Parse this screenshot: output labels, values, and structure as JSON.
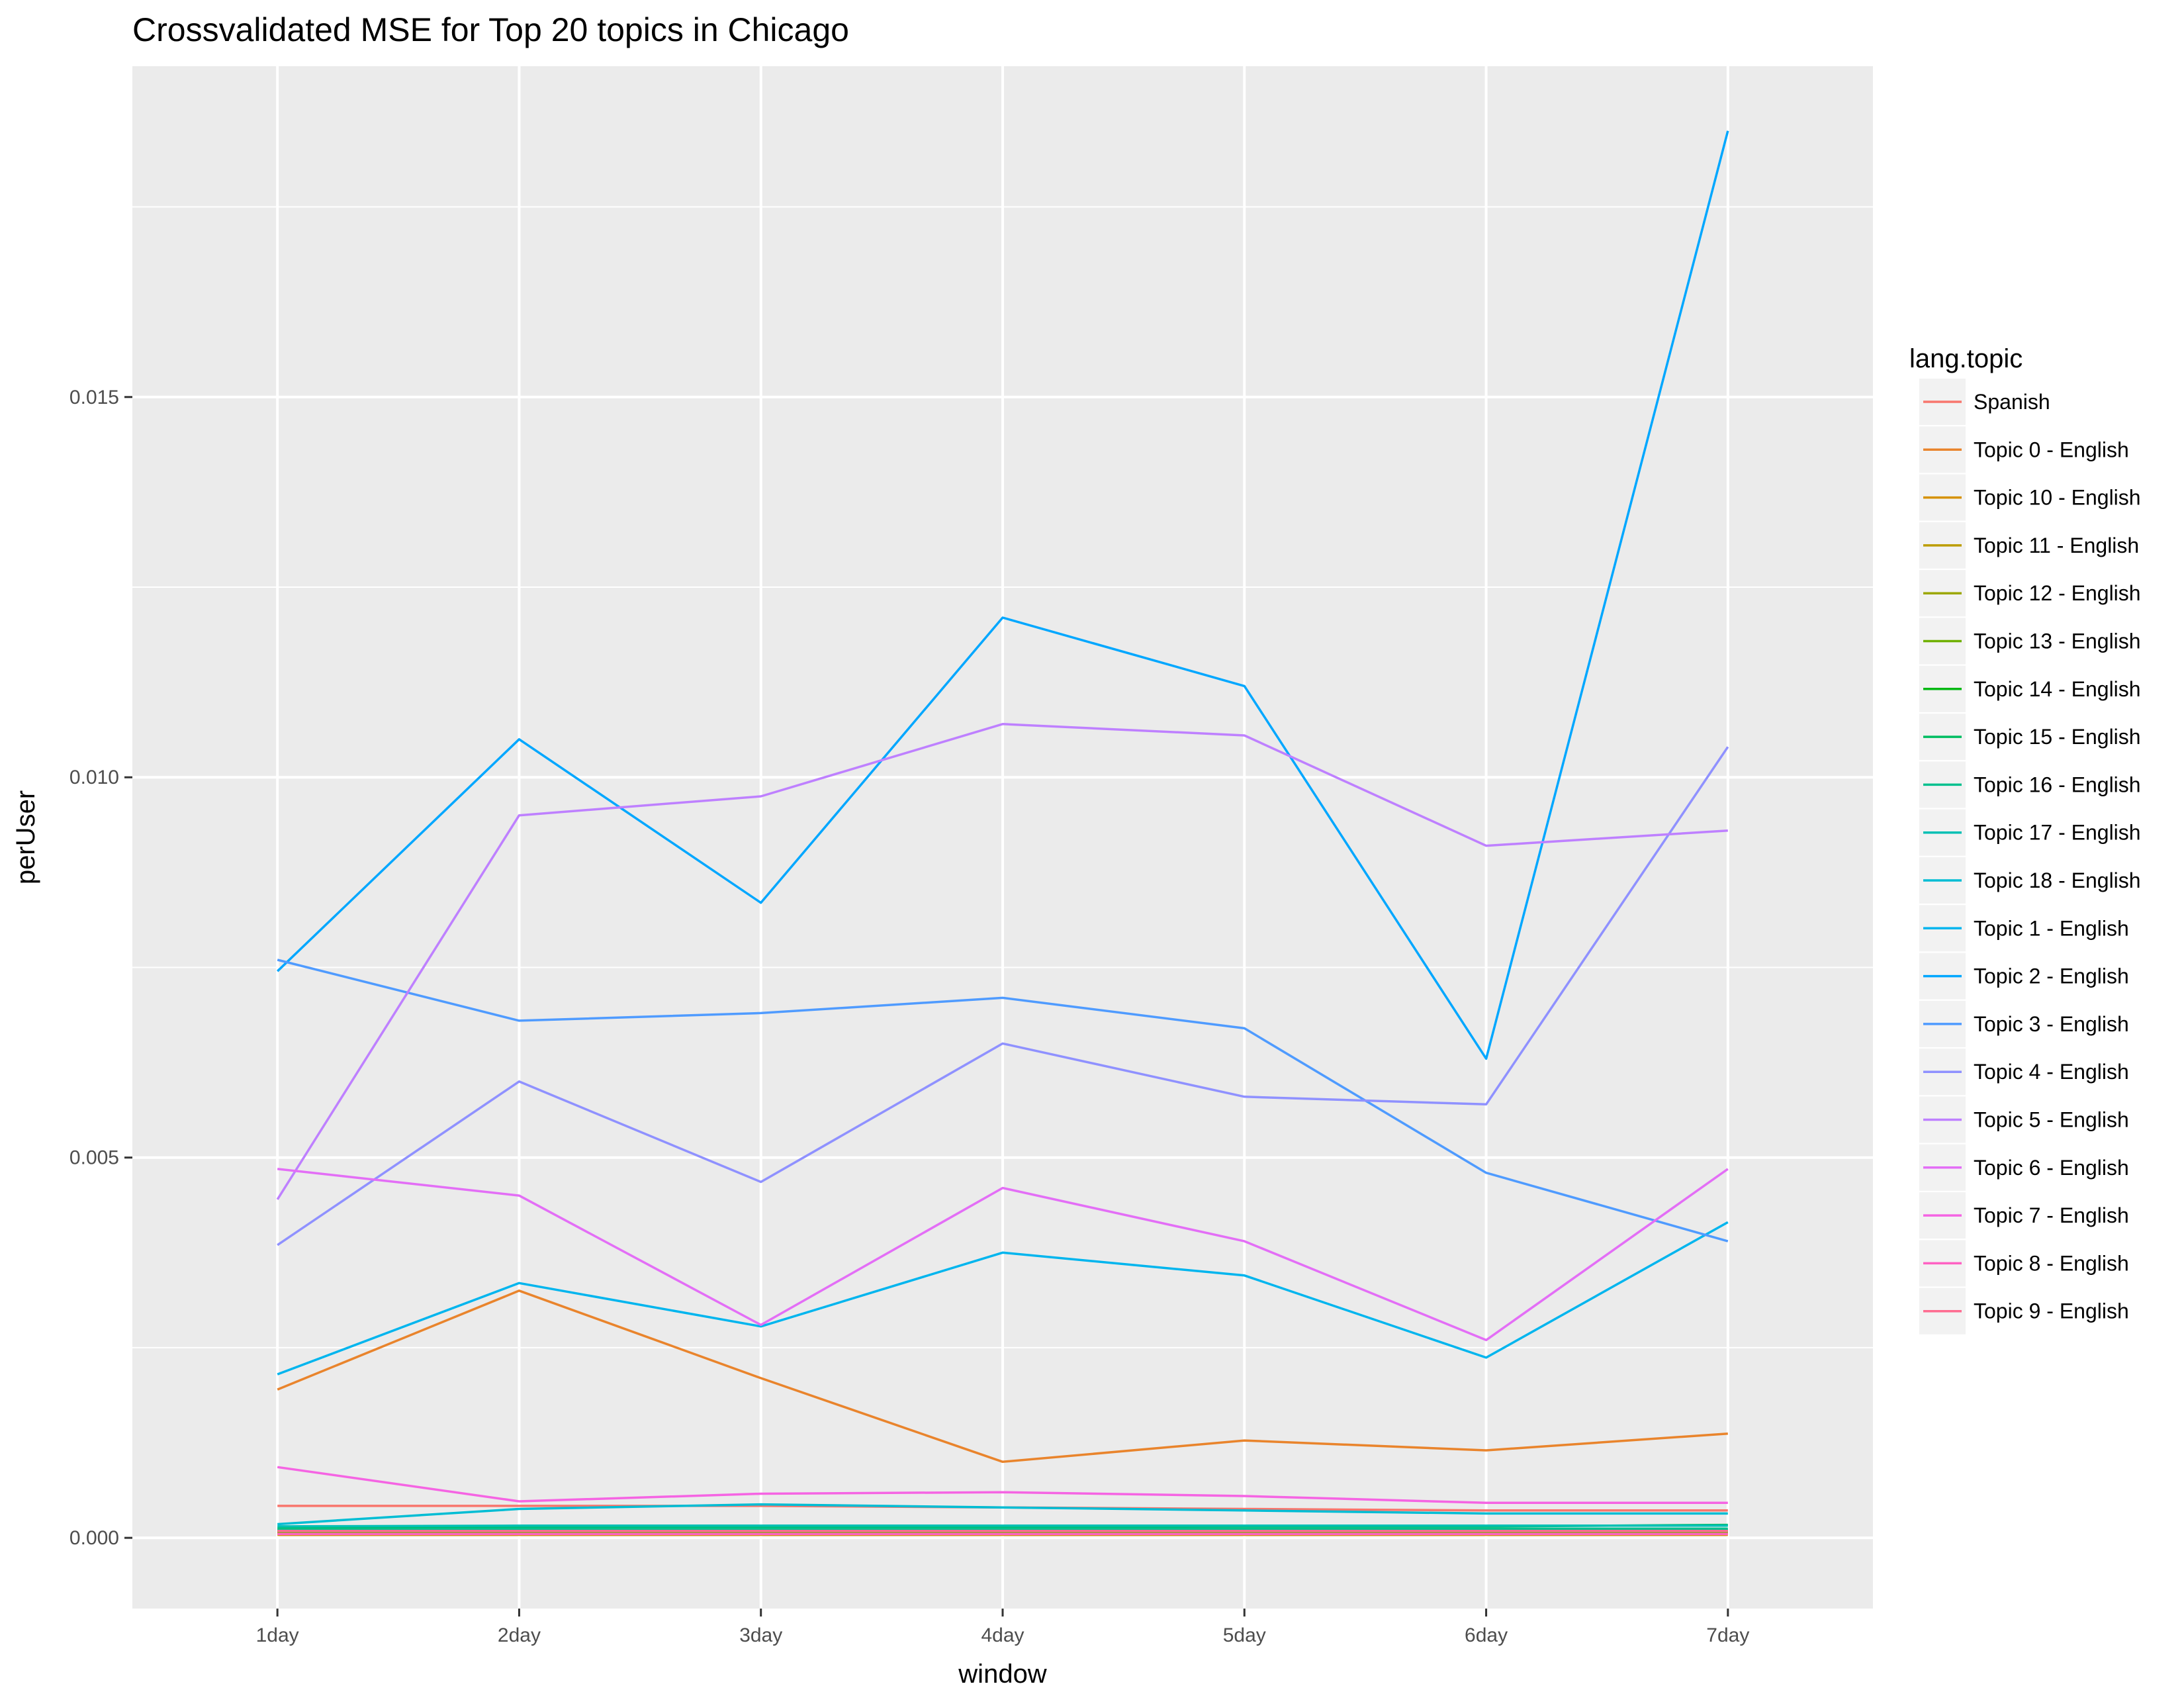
{
  "chart_data": {
    "type": "line",
    "title": "Crossvalidated MSE for Top 20 topics in Chicago",
    "xlabel": "window",
    "ylabel": "perUser",
    "categories": [
      "1day",
      "2day",
      "3day",
      "4day",
      "5day",
      "6day",
      "7day"
    ],
    "ylim": [
      -0.00093,
      0.01935
    ],
    "yticks": [
      0.0,
      0.005,
      0.01,
      0.015
    ],
    "ytick_labels": [
      "0.000",
      "0.005",
      "0.010",
      "0.015"
    ],
    "grid": true,
    "legend": {
      "title": "lang.topic",
      "position": "right"
    },
    "series": [
      {
        "name": "Spanish",
        "color": "#F8766D",
        "values": [
          0.00042,
          0.00042,
          0.00042,
          0.0004,
          0.00038,
          0.00036,
          0.00036
        ]
      },
      {
        "name": "Topic 0 - English",
        "color": "#E9842C",
        "values": [
          0.00195,
          0.00325,
          0.0021,
          0.001,
          0.00128,
          0.00115,
          0.00137
        ]
      },
      {
        "name": "Topic 10 - English",
        "color": "#D69100",
        "values": [
          4e-05,
          4e-05,
          4e-05,
          4e-05,
          4e-05,
          4e-05,
          4e-05
        ]
      },
      {
        "name": "Topic 11 - English",
        "color": "#BC9D00",
        "values": [
          6e-05,
          6e-05,
          6e-05,
          6e-05,
          6e-05,
          6e-05,
          6e-05
        ]
      },
      {
        "name": "Topic 12 - English",
        "color": "#9CA700",
        "values": [
          7e-05,
          7e-05,
          7e-05,
          7e-05,
          7e-05,
          7e-05,
          7e-05
        ]
      },
      {
        "name": "Topic 13 - English",
        "color": "#6FB000",
        "values": [
          8e-05,
          8e-05,
          8e-05,
          8e-05,
          8e-05,
          8e-05,
          8e-05
        ]
      },
      {
        "name": "Topic 14 - English",
        "color": "#00B813",
        "values": [
          0.0001,
          0.0001,
          0.0001,
          0.0001,
          0.0001,
          0.0001,
          0.0001
        ]
      },
      {
        "name": "Topic 15 - English",
        "color": "#00BD61",
        "values": [
          0.00013,
          0.00013,
          0.00014,
          0.00014,
          0.00015,
          0.00015,
          0.00017
        ]
      },
      {
        "name": "Topic 16 - English",
        "color": "#00C08E",
        "values": [
          0.00011,
          0.00012,
          0.00012,
          0.00012,
          0.00012,
          0.00012,
          0.00012
        ]
      },
      {
        "name": "Topic 17 - English",
        "color": "#00C0B4",
        "values": [
          0.00015,
          0.00016,
          0.00016,
          0.00016,
          0.00016,
          0.00016,
          0.00016
        ]
      },
      {
        "name": "Topic 18 - English",
        "color": "#00BDD4",
        "values": [
          0.00018,
          0.00038,
          0.00044,
          0.0004,
          0.00036,
          0.00032,
          0.00032
        ]
      },
      {
        "name": "Topic 1 - English",
        "color": "#00B5EE",
        "values": [
          0.00215,
          0.00335,
          0.00278,
          0.00375,
          0.00345,
          0.00237,
          0.00415
        ]
      },
      {
        "name": "Topic 2 - English",
        "color": "#00A7FF",
        "values": [
          0.00745,
          0.0105,
          0.00835,
          0.0121,
          0.0112,
          0.0063,
          0.0185
        ]
      },
      {
        "name": "Topic 3 - English",
        "color": "#4F9BFF",
        "values": [
          0.0076,
          0.0068,
          0.0069,
          0.0071,
          0.0067,
          0.0048,
          0.0039
        ]
      },
      {
        "name": "Topic 4 - English",
        "color": "#8F91FF",
        "values": [
          0.00385,
          0.006,
          0.00468,
          0.0065,
          0.0058,
          0.0057,
          0.0104
        ]
      },
      {
        "name": "Topic 5 - English",
        "color": "#BE80FF",
        "values": [
          0.00445,
          0.0095,
          0.00975,
          0.0107,
          0.01055,
          0.0091,
          0.0093
        ]
      },
      {
        "name": "Topic 6 - English",
        "color": "#E36EF6",
        "values": [
          0.00485,
          0.0045,
          0.0028,
          0.0046,
          0.0039,
          0.0026,
          0.00485
        ]
      },
      {
        "name": "Topic 7 - English",
        "color": "#F564E3",
        "values": [
          0.00093,
          0.00048,
          0.00058,
          0.0006,
          0.00055,
          0.00046,
          0.00046
        ]
      },
      {
        "name": "Topic 8 - English",
        "color": "#FF61C3",
        "values": [
          5e-05,
          5e-05,
          5e-05,
          5e-05,
          5e-05,
          5e-05,
          5e-05
        ]
      },
      {
        "name": "Topic 9 - English",
        "color": "#FF6C91",
        "values": [
          9e-05,
          9e-05,
          9e-05,
          9e-05,
          9e-05,
          9e-05,
          9e-05
        ]
      }
    ]
  }
}
